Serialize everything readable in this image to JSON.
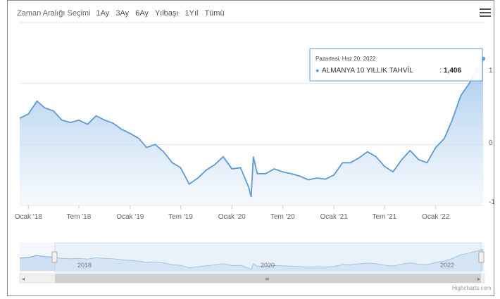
{
  "range_selector": {
    "label": "Zaman Aralığı Seçimi",
    "buttons": [
      "1Ay",
      "3Ay",
      "6Ay",
      "Yılbaşı",
      "1Yıl",
      "Tümü"
    ]
  },
  "tooltip": {
    "date": "Pazartesi, Haz 20, 2022",
    "series_label": "ALMANYA 10 YILLIK TAHVİL",
    "value": "1,406"
  },
  "credit": "Highcharts.com",
  "colors": {
    "line": "#5b9bd5",
    "area_top": "#9cc3ea",
    "area_bottom": "#eef5fc",
    "navigator_mask": "#dbe8f6",
    "grid": "#e6e6e6"
  },
  "chart_data": {
    "type": "area",
    "title": "",
    "xlabel": "",
    "ylabel": "",
    "x_tick_labels": [
      "Ocak '18",
      "Tem '18",
      "Ocak '19",
      "Tem '19",
      "Ocak '20",
      "Tem '20",
      "Ocak '21",
      "Tem '21",
      "Ocak '22"
    ],
    "y_tick_labels": [
      "1",
      "0",
      "-1"
    ],
    "ylim": [
      -1,
      2
    ],
    "navigator_labels": [
      "2018",
      "2020",
      "2022"
    ],
    "series": [
      {
        "name": "ALMANYA 10 YILLIK TAHVİL",
        "x": [
          "2017-12-01",
          "2018-01-01",
          "2018-02-01",
          "2018-03-01",
          "2018-04-01",
          "2018-05-01",
          "2018-06-01",
          "2018-07-01",
          "2018-08-01",
          "2018-09-01",
          "2018-10-01",
          "2018-11-01",
          "2018-12-01",
          "2019-01-01",
          "2019-02-01",
          "2019-03-01",
          "2019-04-01",
          "2019-05-01",
          "2019-06-01",
          "2019-07-01",
          "2019-08-01",
          "2019-09-01",
          "2019-10-01",
          "2019-11-01",
          "2019-12-01",
          "2020-01-01",
          "2020-02-01",
          "2020-03-01",
          "2020-03-10",
          "2020-03-18",
          "2020-04-01",
          "2020-05-01",
          "2020-06-01",
          "2020-07-01",
          "2020-08-01",
          "2020-09-01",
          "2020-10-01",
          "2020-11-01",
          "2020-12-01",
          "2021-01-01",
          "2021-02-01",
          "2021-03-01",
          "2021-04-01",
          "2021-05-01",
          "2021-06-01",
          "2021-07-01",
          "2021-08-01",
          "2021-09-01",
          "2021-10-01",
          "2021-11-01",
          "2021-12-01",
          "2022-01-01",
          "2022-02-01",
          "2022-03-01",
          "2022-04-01",
          "2022-05-01",
          "2022-06-20"
        ],
        "values": [
          0.43,
          0.5,
          0.71,
          0.6,
          0.55,
          0.4,
          0.36,
          0.4,
          0.33,
          0.47,
          0.4,
          0.35,
          0.25,
          0.18,
          0.1,
          -0.05,
          0.0,
          -0.12,
          -0.3,
          -0.38,
          -0.65,
          -0.55,
          -0.42,
          -0.33,
          -0.2,
          -0.4,
          -0.38,
          -0.7,
          -0.86,
          -0.2,
          -0.48,
          -0.48,
          -0.4,
          -0.45,
          -0.48,
          -0.52,
          -0.58,
          -0.55,
          -0.57,
          -0.5,
          -0.3,
          -0.3,
          -0.22,
          -0.12,
          -0.2,
          -0.36,
          -0.45,
          -0.25,
          -0.1,
          -0.25,
          -0.3,
          -0.05,
          0.1,
          0.4,
          0.8,
          1.0,
          1.406
        ]
      }
    ]
  }
}
